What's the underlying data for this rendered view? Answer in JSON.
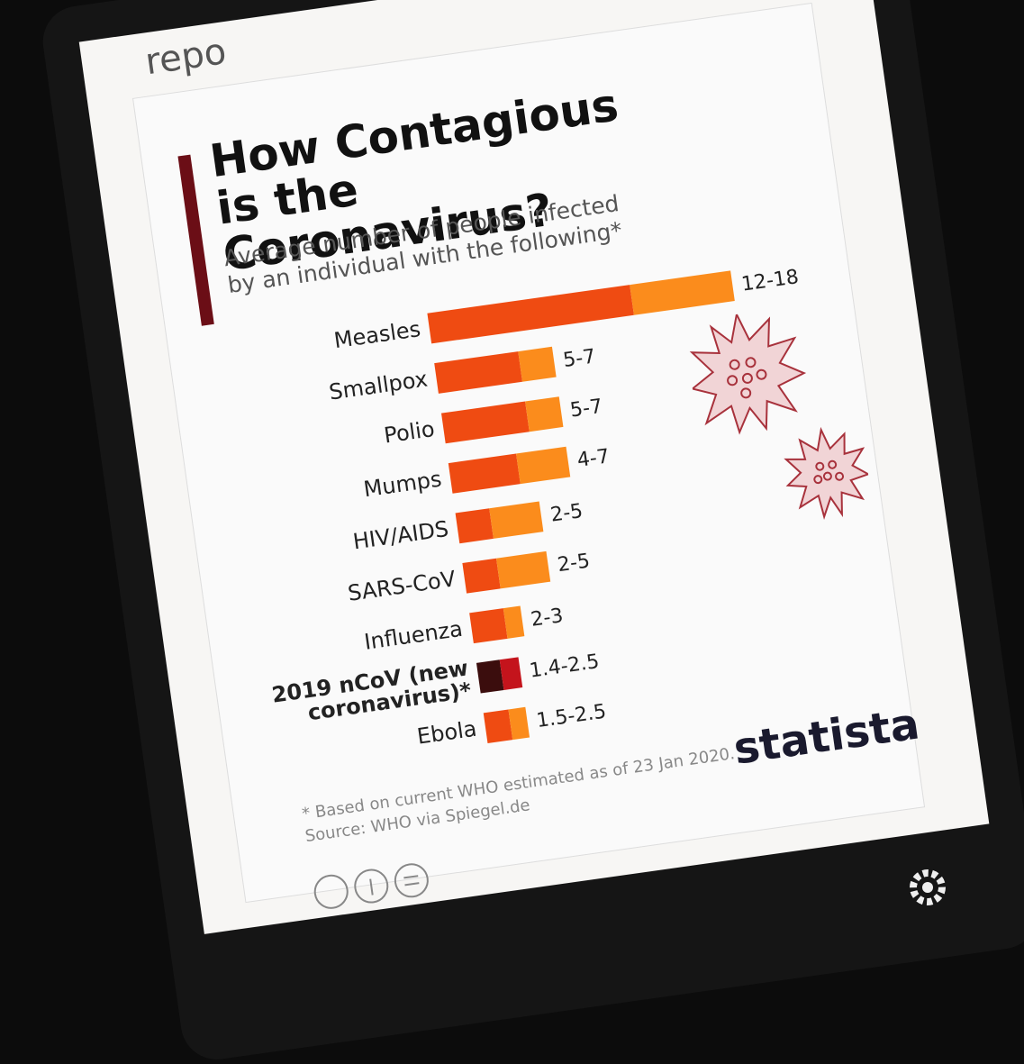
{
  "chart_data": {
    "type": "range_bar",
    "top_text": "repo",
    "title": "How Contagious is the Coronavirus?",
    "subtitle": "Average number of people infected by an individual with the following*",
    "categories": [
      "Measles",
      "Smallpox",
      "Polio",
      "Mumps",
      "HIV/AIDS",
      "SARS-CoV",
      "Influenza",
      "2019 nCoV (new coronavirus)*",
      "Ebola"
    ],
    "low": [
      12,
      5,
      5,
      4,
      2,
      2,
      2,
      1.4,
      1.5
    ],
    "high": [
      18,
      7,
      7,
      7,
      5,
      5,
      3,
      2.5,
      2.5
    ],
    "value_labels": [
      "12-18",
      "5-7",
      "5-7",
      "4-7",
      "2-5",
      "2-5",
      "2-3",
      "1.4-2.5",
      "1.5-2.5"
    ],
    "color_low": "#ef4b12",
    "color_high": "#fb8c1c",
    "highlight_index": 7,
    "highlight_color_low": "#3b0d0d",
    "highlight_color_high": "#c4141c",
    "footnote": "* Based on current WHO estimated as of 23 Jan 2020.",
    "source": "Source: WHO via Spiegel.de",
    "brand": "statista"
  }
}
